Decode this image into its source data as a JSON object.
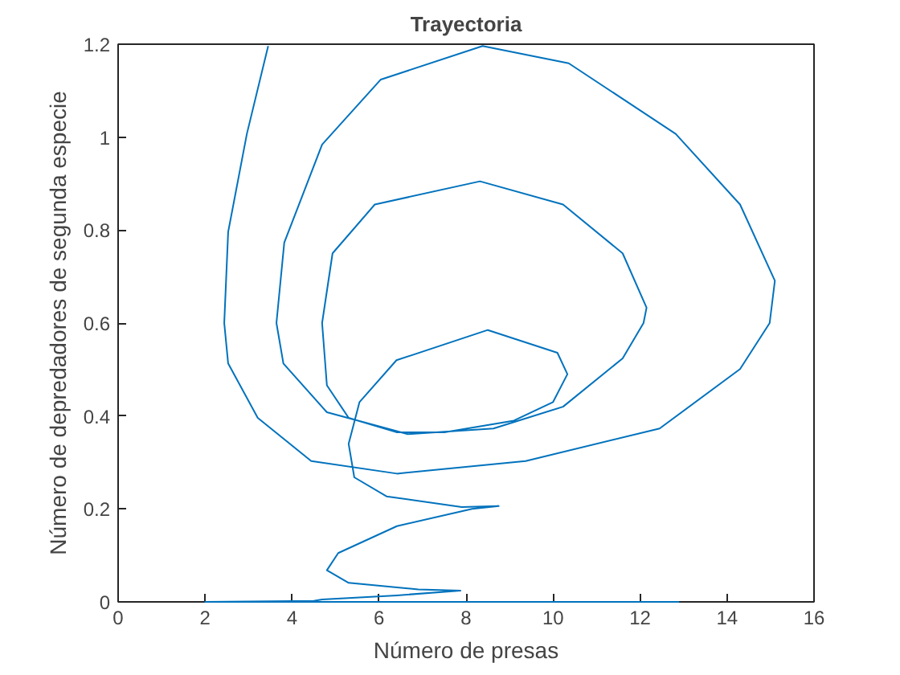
{
  "chart_data": {
    "type": "line",
    "title": "Trayectoria",
    "xlabel": "Número de presas",
    "ylabel": "Número de depredadores de segunda especie",
    "xlim": [
      0,
      16
    ],
    "ylim": [
      0,
      1.2
    ],
    "xticks": [
      0,
      2,
      4,
      6,
      8,
      10,
      12,
      14,
      16
    ],
    "yticks": [
      0,
      0.2,
      0.4,
      0.6,
      0.8,
      1,
      1.2
    ],
    "grid": false,
    "line_style": "solid",
    "series": [
      {
        "color": "#0072bd",
        "x": [
          12.9,
          2.0,
          4.5,
          4.69,
          6.41,
          7.87,
          6.9,
          5.3,
          4.8,
          5.06,
          6.41,
          8.14,
          8.75,
          7.9,
          6.17,
          5.43,
          5.3,
          5.55,
          6.4,
          8.5,
          10.1,
          10.33,
          10.0,
          9.1,
          7.5,
          6.4,
          5.3,
          4.8,
          4.69,
          4.93,
          5.9,
          8.32,
          10.23,
          11.6,
          12.15,
          12.08,
          11.6,
          10.23,
          8.63,
          6.66,
          4.8,
          3.8,
          3.64,
          3.82,
          4.69,
          6.04,
          8.38,
          10.36,
          12.82,
          14.3,
          15.1,
          14.98,
          14.3,
          12.45,
          9.37,
          6.41,
          4.44,
          3.21,
          2.53,
          2.44,
          2.53,
          2.96,
          3.45
        ],
        "values": [
          0.0,
          0.0,
          0.002,
          0.005,
          0.014,
          0.024,
          0.027,
          0.041,
          0.068,
          0.105,
          0.163,
          0.2,
          0.206,
          0.204,
          0.227,
          0.268,
          0.34,
          0.43,
          0.52,
          0.585,
          0.536,
          0.49,
          0.43,
          0.39,
          0.365,
          0.365,
          0.396,
          0.466,
          0.6,
          0.75,
          0.855,
          0.905,
          0.855,
          0.75,
          0.633,
          0.6,
          0.524,
          0.42,
          0.373,
          0.361,
          0.408,
          0.513,
          0.6,
          0.773,
          0.984,
          1.124,
          1.196,
          1.159,
          1.007,
          0.855,
          0.691,
          0.6,
          0.501,
          0.373,
          0.303,
          0.276,
          0.303,
          0.396,
          0.513,
          0.6,
          0.796,
          1.007,
          1.196
        ]
      }
    ]
  }
}
